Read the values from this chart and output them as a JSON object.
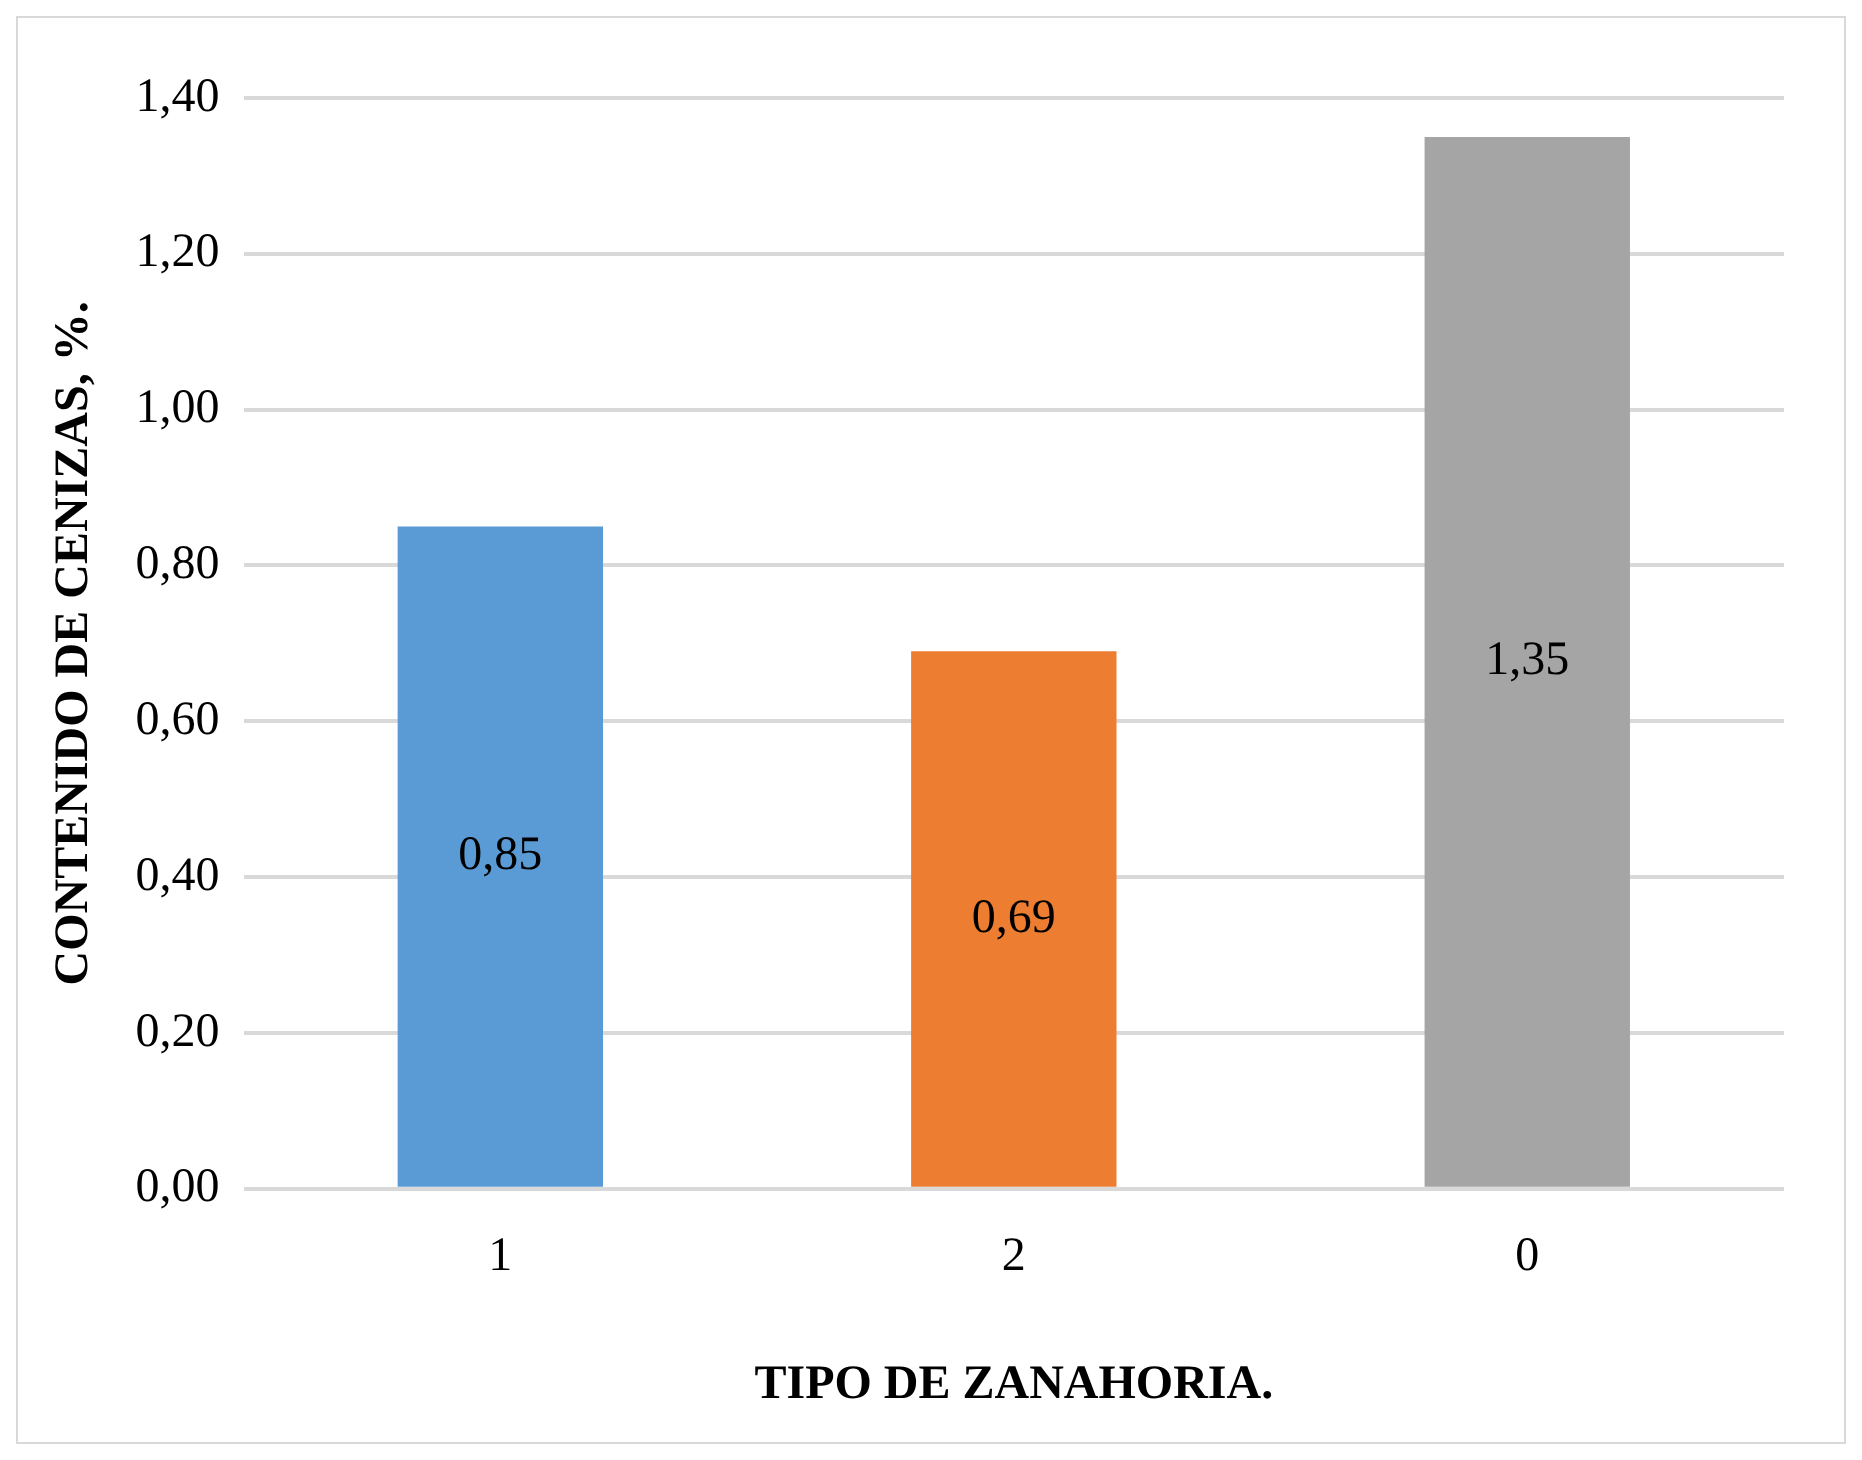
{
  "chart_data": {
    "type": "bar",
    "xlabel": "TIPO DE ZANAHORIA.",
    "ylabel": "CONTENIDO DE CENIZAS, %.",
    "categories": [
      "1",
      "2",
      "0"
    ],
    "values": [
      0.85,
      0.69,
      1.35
    ],
    "colors": [
      "#5b9bd5",
      "#ed7d31",
      "#a5a5a5"
    ],
    "value_labels": [
      "0,85",
      "0,69",
      "1,35"
    ],
    "ylim": [
      0,
      1.4
    ],
    "yticks": [
      {
        "value": 0,
        "label": "0,00"
      },
      {
        "value": 0.2,
        "label": "0,20"
      },
      {
        "value": 0.4,
        "label": "0,40"
      },
      {
        "value": 0.6,
        "label": "0,60"
      },
      {
        "value": 0.8,
        "label": "0,80"
      },
      {
        "value": 1,
        "label": "1,00"
      },
      {
        "value": 1.2,
        "label": "1,20"
      },
      {
        "value": 1.4,
        "label": "1,40"
      }
    ],
    "grid": "y"
  }
}
